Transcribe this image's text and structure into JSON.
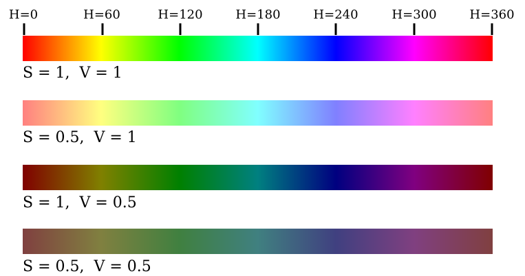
{
  "hue_axis": {
    "ticks": [
      {
        "hue": 0,
        "label": "H=0"
      },
      {
        "hue": 60,
        "label": "H=60"
      },
      {
        "hue": 120,
        "label": "H=120"
      },
      {
        "hue": 180,
        "label": "H=180"
      },
      {
        "hue": 240,
        "label": "H=240"
      },
      {
        "hue": 300,
        "label": "H=300"
      },
      {
        "hue": 360,
        "label": "H=360"
      }
    ],
    "range": [
      0,
      360
    ]
  },
  "bars": [
    {
      "label": "S = 1,  V = 1",
      "saturation": 1,
      "value": 1
    },
    {
      "label": "S = 0.5,  V = 1",
      "saturation": 0.5,
      "value": 1
    },
    {
      "label": "S = 1,  V = 0.5",
      "saturation": 1,
      "value": 0.5
    },
    {
      "label": "S = 0.5,  V = 0.5",
      "saturation": 0.5,
      "value": 0.5
    }
  ]
}
